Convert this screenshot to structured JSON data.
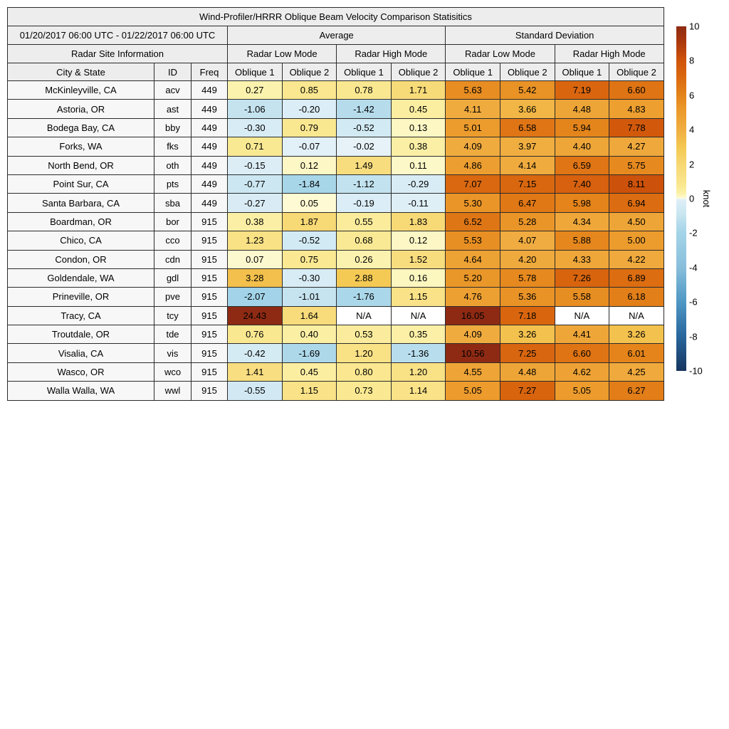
{
  "chart_data": {
    "type": "heatmap",
    "title": "Wind-Profiler/HRRR Oblique Beam Velocity Comparison Statisitics",
    "date_range": "01/20/2017 06:00 UTC - 01/22/2017 06:00 UTC",
    "group_headers": {
      "average": "Average",
      "std_dev": "Standard Deviation"
    },
    "site_info_header": "Radar Site Information",
    "mode_headers": [
      "Radar Low Mode",
      "Radar High Mode",
      "Radar Low Mode",
      "Radar High Mode"
    ],
    "column_headers": {
      "city": "City & State",
      "id": "ID",
      "freq": "Freq",
      "oblique1": "Oblique 1",
      "oblique2": "Oblique 2"
    },
    "value_column_order": [
      "Average Low Oblique 1",
      "Average Low Oblique 2",
      "Average High Oblique 1",
      "Average High Oblique 2",
      "StdDev Low Oblique 1",
      "StdDev Low Oblique 2",
      "StdDev High Oblique 1",
      "StdDev High Oblique 2"
    ],
    "rows": [
      {
        "city": "McKinleyville, CA",
        "id": "acv",
        "freq": "449",
        "values": [
          "0.27",
          "0.85",
          "0.78",
          "1.71",
          "5.63",
          "5.42",
          "7.19",
          "6.60"
        ]
      },
      {
        "city": "Astoria, OR",
        "id": "ast",
        "freq": "449",
        "values": [
          "-1.06",
          "-0.20",
          "-1.42",
          "0.45",
          "4.11",
          "3.66",
          "4.48",
          "4.83"
        ]
      },
      {
        "city": "Bodega Bay, CA",
        "id": "bby",
        "freq": "449",
        "values": [
          "-0.30",
          "0.79",
          "-0.52",
          "0.13",
          "5.01",
          "6.58",
          "5.94",
          "7.78"
        ]
      },
      {
        "city": "Forks, WA",
        "id": "fks",
        "freq": "449",
        "values": [
          "0.71",
          "-0.07",
          "-0.02",
          "0.38",
          "4.09",
          "3.97",
          "4.40",
          "4.27"
        ]
      },
      {
        "city": "North Bend, OR",
        "id": "oth",
        "freq": "449",
        "values": [
          "-0.15",
          "0.12",
          "1.49",
          "0.11",
          "4.86",
          "4.14",
          "6.59",
          "5.75"
        ]
      },
      {
        "city": "Point Sur, CA",
        "id": "pts",
        "freq": "449",
        "values": [
          "-0.77",
          "-1.84",
          "-1.12",
          "-0.29",
          "7.07",
          "7.15",
          "7.40",
          "8.11"
        ]
      },
      {
        "city": "Santa Barbara, CA",
        "id": "sba",
        "freq": "449",
        "values": [
          "-0.27",
          "0.05",
          "-0.19",
          "-0.11",
          "5.30",
          "6.47",
          "5.98",
          "6.94"
        ]
      },
      {
        "city": "Boardman, OR",
        "id": "bor",
        "freq": "915",
        "values": [
          "0.38",
          "1.87",
          "0.55",
          "1.83",
          "6.52",
          "5.28",
          "4.34",
          "4.50"
        ]
      },
      {
        "city": "Chico, CA",
        "id": "cco",
        "freq": "915",
        "values": [
          "1.23",
          "-0.52",
          "0.68",
          "0.12",
          "5.53",
          "4.07",
          "5.88",
          "5.00"
        ]
      },
      {
        "city": "Condon, OR",
        "id": "cdn",
        "freq": "915",
        "values": [
          "0.07",
          "0.75",
          "0.26",
          "1.52",
          "4.64",
          "4.20",
          "4.33",
          "4.22"
        ]
      },
      {
        "city": "Goldendale, WA",
        "id": "gdl",
        "freq": "915",
        "values": [
          "3.28",
          "-0.30",
          "2.88",
          "0.16",
          "5.20",
          "5.78",
          "7.26",
          "6.89"
        ]
      },
      {
        "city": "Prineville, OR",
        "id": "pve",
        "freq": "915",
        "values": [
          "-2.07",
          "-1.01",
          "-1.76",
          "1.15",
          "4.76",
          "5.36",
          "5.58",
          "6.18"
        ]
      },
      {
        "city": "Tracy, CA",
        "id": "tcy",
        "freq": "915",
        "values": [
          "24.43",
          "1.64",
          "N/A",
          "N/A",
          "16.05",
          "7.18",
          "N/A",
          "N/A"
        ]
      },
      {
        "city": "Troutdale, OR",
        "id": "tde",
        "freq": "915",
        "values": [
          "0.76",
          "0.40",
          "0.53",
          "0.35",
          "4.09",
          "3.26",
          "4.41",
          "3.26"
        ]
      },
      {
        "city": "Visalia, CA",
        "id": "vis",
        "freq": "915",
        "values": [
          "-0.42",
          "-1.69",
          "1.20",
          "-1.36",
          "10.56",
          "7.25",
          "6.60",
          "6.01"
        ]
      },
      {
        "city": "Wasco, OR",
        "id": "wco",
        "freq": "915",
        "values": [
          "1.41",
          "0.45",
          "0.80",
          "1.20",
          "4.55",
          "4.48",
          "4.62",
          "4.25"
        ]
      },
      {
        "city": "Walla Walla, WA",
        "id": "wwl",
        "freq": "915",
        "values": [
          "-0.55",
          "1.15",
          "0.73",
          "1.14",
          "5.05",
          "7.27",
          "5.05",
          "6.27"
        ]
      }
    ],
    "na_text": "N/A",
    "colorbar": {
      "unit_label": "knot",
      "min": -10,
      "max": 10,
      "ticks": [
        10,
        8,
        6,
        4,
        2,
        0,
        -2,
        -4,
        -6,
        -8,
        -10
      ],
      "stops": [
        [
          -10,
          "#16355f"
        ],
        [
          -8,
          "#28669d"
        ],
        [
          -6,
          "#4e97c4"
        ],
        [
          -4,
          "#88bedb"
        ],
        [
          -2,
          "#a3d4e8"
        ],
        [
          -1.5,
          "#b3dbec"
        ],
        [
          -1,
          "#c6e4ef"
        ],
        [
          -0.5,
          "#d3eaf4"
        ],
        [
          -0.15,
          "#dcedf6"
        ],
        [
          -0.02,
          "#e6f2f7"
        ],
        [
          0.02,
          "#fefbd9"
        ],
        [
          0.1,
          "#fdf8c9"
        ],
        [
          0.3,
          "#fbf1a9"
        ],
        [
          0.7,
          "#fae993"
        ],
        [
          1.2,
          "#f9e186"
        ],
        [
          2,
          "#f7d772"
        ],
        [
          3,
          "#f4c851"
        ],
        [
          4,
          "#f0ad41"
        ],
        [
          5,
          "#ec9c2d"
        ],
        [
          6,
          "#e4841b"
        ],
        [
          7,
          "#db6a10"
        ],
        [
          8,
          "#d0540a"
        ],
        [
          9,
          "#ae3a0c"
        ],
        [
          10,
          "#8e2a13"
        ]
      ]
    },
    "colors": {
      "header_bg": "#ededed",
      "site_bg": "#f7f7f7",
      "na_bg": "#ffffff",
      "border": "#2b2b2b"
    }
  }
}
